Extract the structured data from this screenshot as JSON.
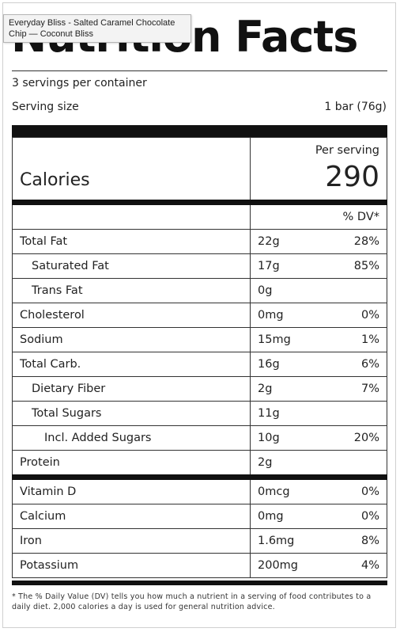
{
  "tooltip": "Everyday Bliss - Salted Caramel Chocolate Chip — Coconut Bliss",
  "title": "Nutrition Facts",
  "servings_per_container": "3 servings per container",
  "serving_size_label": "Serving size",
  "serving_size_value": "1 bar (76g)",
  "per_serving_label": "Per serving",
  "calories_label": "Calories",
  "calories_value": "290",
  "dv_header": "% DV*",
  "nutrients": [
    {
      "name": "Total Fat",
      "amount": "22g",
      "dv": "28%"
    },
    {
      "name": "Saturated Fat",
      "amount": "17g",
      "dv": "85%"
    },
    {
      "name": "Trans Fat",
      "amount": "0g",
      "dv": ""
    },
    {
      "name": "Cholesterol",
      "amount": "0mg",
      "dv": "0%"
    },
    {
      "name": "Sodium",
      "amount": "15mg",
      "dv": "1%"
    },
    {
      "name": "Total Carb.",
      "amount": "16g",
      "dv": "6%"
    },
    {
      "name": "Dietary Fiber",
      "amount": "2g",
      "dv": "7%"
    },
    {
      "name": "Total Sugars",
      "amount": "11g",
      "dv": ""
    },
    {
      "name": "Incl. Added Sugars",
      "amount": "10g",
      "dv": "20%"
    },
    {
      "name": "Protein",
      "amount": "2g",
      "dv": ""
    }
  ],
  "vitamins": [
    {
      "name": "Vitamin D",
      "amount": "0mcg",
      "dv": "0%"
    },
    {
      "name": "Calcium",
      "amount": "0mg",
      "dv": "0%"
    },
    {
      "name": "Iron",
      "amount": "1.6mg",
      "dv": "8%"
    },
    {
      "name": "Potassium",
      "amount": "200mg",
      "dv": "4%"
    }
  ],
  "footnote": "* The % Daily Value (DV) tells you how much a nutrient in a serving of food contributes to a daily diet. 2,000 calories a day is used for general nutrition advice."
}
